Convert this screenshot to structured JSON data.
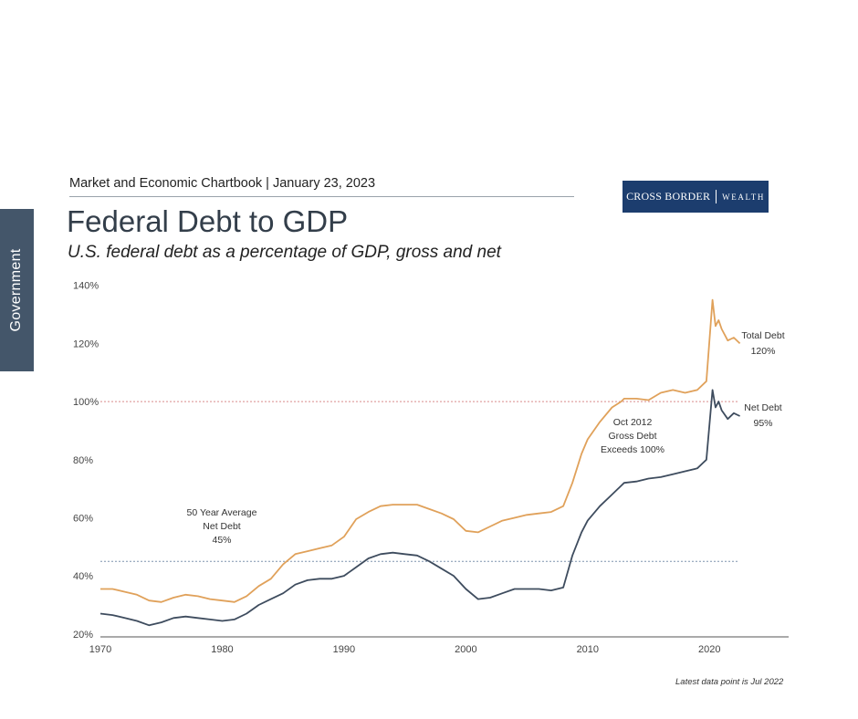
{
  "side_tab": "Government",
  "header": "Market and Economic Chartbook | January 23, 2023",
  "logo": {
    "left": "CROSS BORDER",
    "right": "WEALTH"
  },
  "footnote": "Latest data point is Jul 2022",
  "colors": {
    "gross": "#e0a15a",
    "net": "#3e4c5e",
    "ref100": "#d98b8b",
    "avg": "#7f93ad",
    "brand": "#1c3d6e"
  },
  "chart_data": {
    "type": "line",
    "title": "Federal Debt to GDP",
    "subtitle": "U.S. federal debt as a percentage of GDP, gross and net",
    "xlabel": "",
    "ylabel": "",
    "xlim": [
      1970,
      2026.5
    ],
    "ylim": [
      19,
      144
    ],
    "x_ticks": [
      "1970",
      "1980",
      "1990",
      "2000",
      "2010",
      "2020"
    ],
    "y_ticks": [
      "20%",
      "40%",
      "60%",
      "80%",
      "100%",
      "120%",
      "140%"
    ],
    "series": [
      {
        "name": "Total Debt",
        "end_label": "120%",
        "x": [
          1970,
          1971,
          1972,
          1973,
          1974,
          1975,
          1976,
          1977,
          1978,
          1979,
          1980,
          1981,
          1982,
          1983,
          1984,
          1985,
          1986,
          1987,
          1988,
          1989,
          1990,
          1991,
          1992,
          1993,
          1994,
          1995,
          1996,
          1997,
          1998,
          1999,
          2000,
          2001,
          2002,
          2003,
          2004,
          2005,
          2006,
          2007,
          2008,
          2008.75,
          2009.5,
          2010,
          2011,
          2012,
          2012.75,
          2013,
          2014,
          2015,
          2016,
          2017,
          2018,
          2019,
          2019.75,
          2020.25,
          2020.5,
          2020.75,
          2021,
          2021.5,
          2022,
          2022.5
        ],
        "values": [
          35.5,
          35.5,
          34.5,
          33.5,
          31.5,
          31,
          32.5,
          33.5,
          33,
          32,
          31.5,
          31,
          33,
          36.5,
          39,
          44,
          47.5,
          48.5,
          49.5,
          50.5,
          53.5,
          59.5,
          62,
          64,
          64.5,
          64.5,
          64.5,
          63,
          61.5,
          59.5,
          55.5,
          55,
          57,
          59,
          60,
          61,
          61.5,
          62,
          64,
          72,
          82,
          87,
          93,
          98,
          100,
          101,
          101,
          100.5,
          103,
          104,
          103,
          104,
          107,
          135,
          126,
          128,
          125,
          121,
          122,
          120
        ]
      },
      {
        "name": "Net Debt",
        "end_label": "95%",
        "x": [
          1970,
          1971,
          1972,
          1973,
          1974,
          1975,
          1976,
          1977,
          1978,
          1979,
          1980,
          1981,
          1982,
          1983,
          1984,
          1985,
          1986,
          1987,
          1988,
          1989,
          1990,
          1991,
          1992,
          1993,
          1994,
          1995,
          1996,
          1997,
          1998,
          1999,
          2000,
          2001,
          2002,
          2003,
          2004,
          2005,
          2006,
          2007,
          2008,
          2008.75,
          2009.5,
          2010,
          2011,
          2012,
          2012.75,
          2013,
          2014,
          2015,
          2016,
          2017,
          2018,
          2019,
          2019.75,
          2020.25,
          2020.5,
          2020.75,
          2021,
          2021.5,
          2022,
          2022.5
        ],
        "values": [
          27,
          26.5,
          25.5,
          24.5,
          23,
          24,
          25.5,
          26,
          25.5,
          25,
          24.5,
          25,
          27,
          30,
          32,
          34,
          37,
          38.5,
          39,
          39,
          40,
          43,
          46,
          47.5,
          48,
          47.5,
          47,
          45,
          42.5,
          40,
          35.5,
          32,
          32.5,
          34,
          35.5,
          35.5,
          35.5,
          35,
          36,
          47,
          55,
          59,
          64,
          68,
          71,
          72,
          72.5,
          73.5,
          74,
          75,
          76,
          77,
          80,
          104,
          98,
          100,
          97,
          94,
          96,
          95
        ]
      }
    ],
    "reference_lines": [
      {
        "y": 100
      },
      {
        "y": 45
      }
    ],
    "annotations": [
      {
        "lines": [
          "Oct 2012",
          "Gross Debt",
          "Exceeds 100%"
        ]
      },
      {
        "lines": [
          "50 Year Average",
          "Net Debt",
          "45%"
        ]
      }
    ]
  }
}
